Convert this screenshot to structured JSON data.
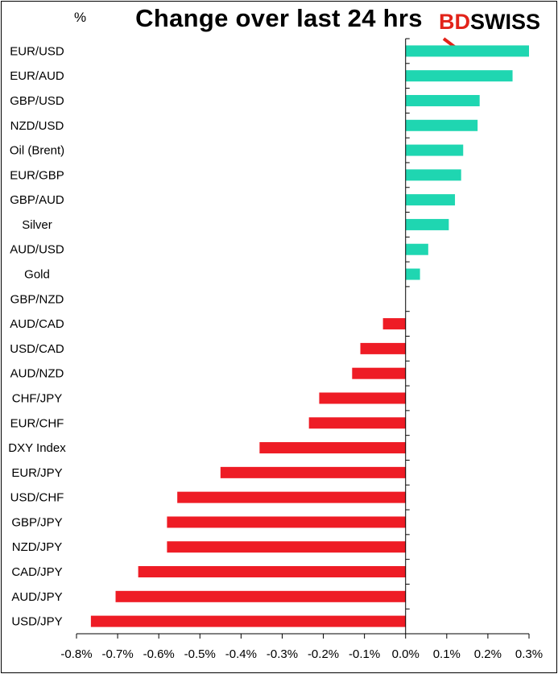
{
  "title": "Change over last 24 hrs",
  "unit": "%",
  "logo": {
    "bd": "BD",
    "swiss": "SWISS",
    "accent_color": "#e2231a"
  },
  "colors": {
    "positive": "#1fd6b1",
    "negative": "#ee1c25"
  },
  "chart_data": {
    "type": "bar",
    "orientation": "horizontal",
    "title": "Change over last 24 hrs",
    "ylabel": "%",
    "xlim": [
      -0.8,
      0.3
    ],
    "xticks": [
      "-0.8%",
      "-0.7%",
      "-0.6%",
      "-0.5%",
      "-0.4%",
      "-0.3%",
      "-0.2%",
      "-0.1%",
      "0.0%",
      "0.1%",
      "0.2%",
      "0.3%"
    ],
    "xtick_values": [
      -0.8,
      -0.7,
      -0.6,
      -0.5,
      -0.4,
      -0.3,
      -0.2,
      -0.1,
      0.0,
      0.1,
      0.2,
      0.3
    ],
    "grid": false,
    "categories": [
      "EUR/USD",
      "EUR/AUD",
      "GBP/USD",
      "NZD/USD",
      "Oil (Brent)",
      "EUR/GBP",
      "GBP/AUD",
      "Silver",
      "AUD/USD",
      "Gold",
      "GBP/NZD",
      "AUD/CAD",
      "USD/CAD",
      "AUD/NZD",
      "CHF/JPY",
      "EUR/CHF",
      "DXY Index",
      "EUR/JPY",
      "USD/CHF",
      "GBP/JPY",
      "NZD/JPY",
      "CAD/JPY",
      "AUD/JPY",
      "USD/JPY"
    ],
    "values": [
      0.3,
      0.26,
      0.18,
      0.175,
      0.14,
      0.135,
      0.12,
      0.105,
      0.055,
      0.035,
      0.0,
      -0.055,
      -0.11,
      -0.13,
      -0.21,
      -0.235,
      -0.355,
      -0.45,
      -0.555,
      -0.58,
      -0.58,
      -0.65,
      -0.705,
      -0.765
    ]
  }
}
